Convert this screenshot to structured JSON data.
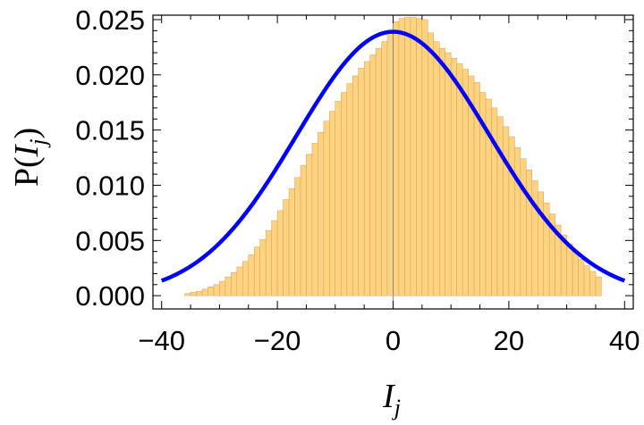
{
  "chart_data": {
    "type": "bar",
    "xlabel_main": "I",
    "xlabel_sub": "j",
    "ylabel_prefix": "P(",
    "ylabel_main": "I",
    "ylabel_sub": "j",
    "ylabel_suffix": ")",
    "xlim": [
      -41.5,
      41.5
    ],
    "ylim": [
      -0.0012,
      0.0254
    ],
    "x_ticks": [
      -40,
      -20,
      0,
      20,
      40
    ],
    "x_tick_labels": [
      "−40",
      "−20",
      "0",
      "20",
      "40"
    ],
    "y_ticks": [
      0.0,
      0.005,
      0.01,
      0.015,
      0.02,
      0.025
    ],
    "y_tick_labels": [
      "0.000",
      "0.005",
      "0.010",
      "0.015",
      "0.020",
      "0.025"
    ],
    "histogram": {
      "bin_width": 1,
      "bin_start": -36,
      "heights": [
        0.0002,
        0.0003,
        0.0004,
        0.0006,
        0.0008,
        0.001,
        0.0013,
        0.0017,
        0.0021,
        0.0026,
        0.0031,
        0.0037,
        0.0044,
        0.0051,
        0.0059,
        0.0068,
        0.0077,
        0.0087,
        0.0097,
        0.0107,
        0.0118,
        0.0128,
        0.0138,
        0.0148,
        0.0158,
        0.0167,
        0.0176,
        0.0184,
        0.0192,
        0.0199,
        0.0206,
        0.0212,
        0.0218,
        0.0224,
        0.023,
        0.0238,
        0.0248,
        0.0251,
        0.0252,
        0.0252,
        0.0251,
        0.025,
        0.0238,
        0.023,
        0.0224,
        0.022,
        0.0215,
        0.021,
        0.0205,
        0.0199,
        0.0193,
        0.0184,
        0.0178,
        0.017,
        0.0162,
        0.0153,
        0.0144,
        0.0134,
        0.0124,
        0.0114,
        0.0104,
        0.0094,
        0.0084,
        0.0074,
        0.0064,
        0.0055,
        0.0047,
        0.004,
        0.0033,
        0.0027,
        0.0022,
        0.0017
      ],
      "fill": "#ffd27f",
      "stroke": "#c9a45c"
    },
    "curve": {
      "kind": "gaussian",
      "mean": 0,
      "sigma": 16.7,
      "amplitude": 0.0239,
      "x_range": [
        -40,
        40
      ],
      "color": "#0000ff"
    },
    "zero_line_color": "#888888"
  }
}
